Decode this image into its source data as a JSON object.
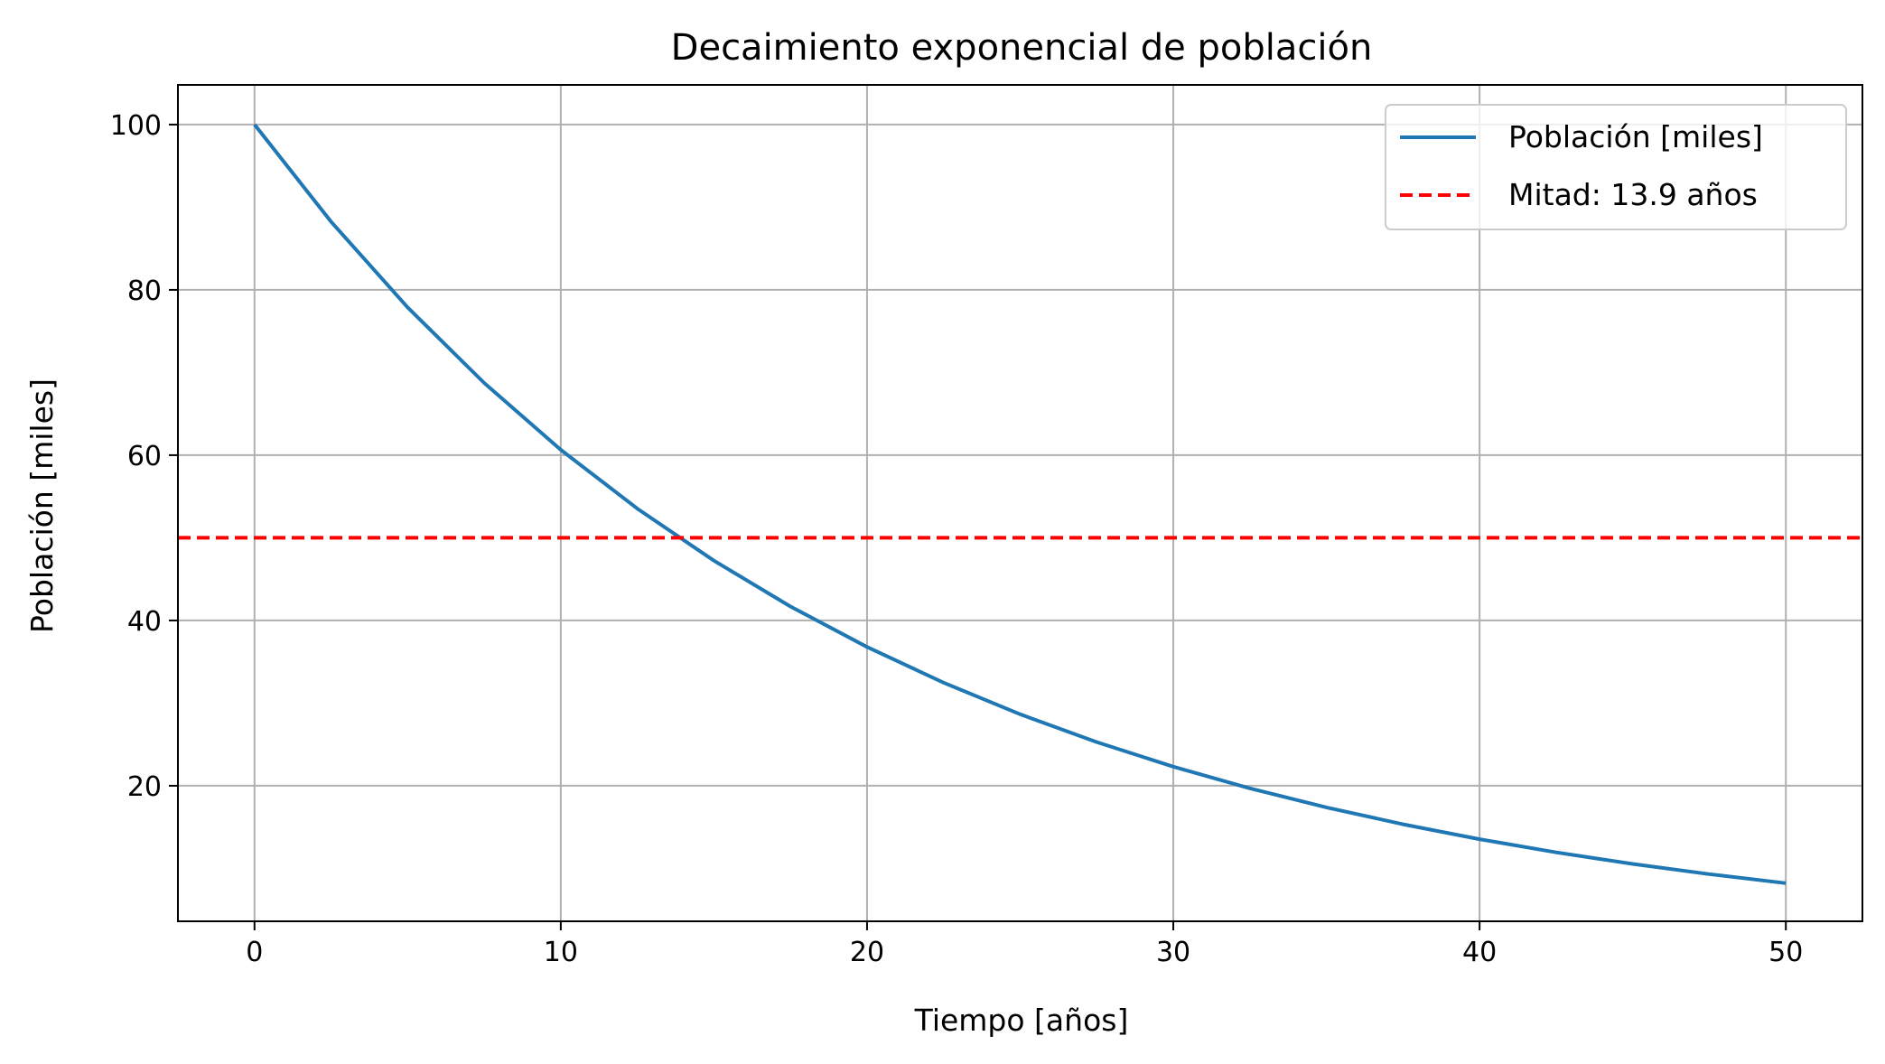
{
  "chart_data": {
    "type": "line",
    "title": "Decaimiento exponencial de población",
    "xlabel": "Tiempo [años]",
    "ylabel": "Población [miles]",
    "xlim": [
      -2.5,
      52.5
    ],
    "ylim": [
      3.6,
      104.8
    ],
    "x_ticks": [
      0,
      10,
      20,
      30,
      40,
      50
    ],
    "y_ticks": [
      20,
      40,
      60,
      80,
      100
    ],
    "grid": true,
    "legend_position": "top-right",
    "series": [
      {
        "name": "Población [miles]",
        "type": "line",
        "color": "#1f77b4",
        "style": "solid",
        "x": [
          0,
          2.5,
          5,
          7.5,
          10,
          12.5,
          15,
          17.5,
          20,
          22.5,
          25,
          27.5,
          30,
          32.5,
          35,
          37.5,
          40,
          42.5,
          45,
          47.5,
          50
        ],
        "y": [
          100,
          88.25,
          77.88,
          68.73,
          60.65,
          53.53,
          47.24,
          41.69,
          36.79,
          32.47,
          28.65,
          25.28,
          22.31,
          19.69,
          17.38,
          15.34,
          13.53,
          11.94,
          10.54,
          9.3,
          8.21
        ]
      },
      {
        "name": "Mitad: 13.9 años",
        "type": "hline",
        "color": "#ff0000",
        "style": "dashed",
        "y": 50
      }
    ]
  }
}
